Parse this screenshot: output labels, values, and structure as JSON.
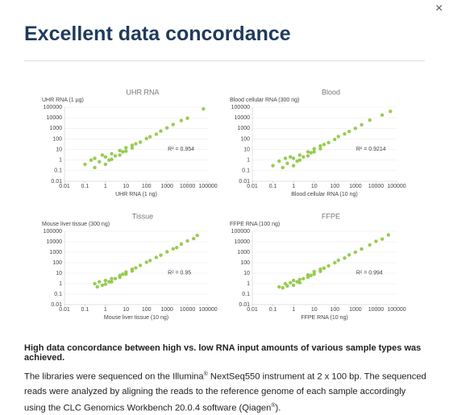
{
  "header": {
    "title": "Excellent data concordance",
    "close": "×"
  },
  "chart_data": [
    {
      "type": "scatter",
      "title": "UHR RNA",
      "xlabel": "UHR RNA (1 ng)",
      "ylabel": "UHR RNA (1 µg)",
      "annotation": "R² = 0.954",
      "color": "#8dc63f",
      "log": true,
      "grid": true,
      "x": [
        0.1,
        0.2,
        0.3,
        0.3,
        0.5,
        0.7,
        1,
        1,
        1.5,
        2,
        2,
        3,
        5,
        5,
        7,
        10,
        10,
        20,
        20,
        30,
        50,
        100,
        150,
        300,
        500,
        1000,
        2000,
        5000,
        10000,
        60000
      ],
      "y": [
        0.4,
        1,
        0.2,
        1.5,
        0.7,
        3,
        0.4,
        2,
        1,
        4,
        1.2,
        2.5,
        8,
        3,
        6,
        15,
        7,
        25,
        14,
        35,
        50,
        110,
        160,
        280,
        550,
        1100,
        2300,
        5500,
        9000,
        70000
      ],
      "xlim": [
        0.01,
        100000
      ],
      "ylim": [
        0.01,
        100000
      ],
      "xticks": [
        0.01,
        0.1,
        1,
        10,
        100,
        1000,
        10000,
        100000
      ],
      "yticks": [
        0.01,
        0.1,
        1,
        10,
        100,
        1000,
        10000,
        100000
      ]
    },
    {
      "type": "scatter",
      "title": "Blood",
      "xlabel": "Blood cellular RNA (10 ng)",
      "ylabel": "Blood cellular RNA (300 ng)",
      "annotation": "R² = 0.9214",
      "color": "#8dc63f",
      "log": true,
      "grid": true,
      "x": [
        0.1,
        0.2,
        0.3,
        0.4,
        0.5,
        0.7,
        1,
        1,
        1.5,
        2,
        2,
        3,
        5,
        5,
        7,
        10,
        10,
        20,
        20,
        30,
        50,
        100,
        150,
        300,
        500,
        1000,
        2000,
        5000,
        20000,
        50000
      ],
      "y": [
        0.3,
        0.8,
        0.2,
        1.5,
        0.5,
        2,
        0.3,
        1.5,
        0.8,
        3,
        1,
        2,
        6,
        2.5,
        5,
        12,
        6,
        22,
        12,
        30,
        45,
        90,
        170,
        300,
        500,
        1000,
        2200,
        6000,
        18000,
        40000
      ],
      "xlim": [
        0.01,
        100000
      ],
      "ylim": [
        0.01,
        100000
      ],
      "xticks": [
        0.01,
        0.1,
        1,
        10,
        100,
        1000,
        10000,
        100000
      ],
      "yticks": [
        0.01,
        0.1,
        1,
        10,
        100,
        1000,
        10000,
        100000
      ]
    },
    {
      "type": "scatter",
      "title": "Tissue",
      "xlabel": "Mouse liver tissue (10 ng)",
      "ylabel": "Mouse liver tissue (300 ng)",
      "annotation": "R² = 0.95",
      "color": "#8dc63f",
      "log": true,
      "grid": true,
      "x": [
        0.3,
        0.4,
        0.5,
        0.7,
        1,
        1,
        1.5,
        2,
        2,
        3,
        5,
        5,
        7,
        10,
        10,
        20,
        20,
        30,
        50,
        100,
        150,
        300,
        500,
        1000,
        2000,
        3000,
        5000,
        10000,
        20000,
        30000
      ],
      "y": [
        1,
        0.5,
        1.5,
        0.7,
        2,
        0.9,
        1.5,
        3,
        1.5,
        3,
        6,
        4,
        8,
        13,
        8,
        24,
        16,
        32,
        55,
        110,
        160,
        320,
        520,
        1100,
        2100,
        2800,
        6000,
        12000,
        20000,
        40000
      ],
      "xlim": [
        0.01,
        100000
      ],
      "ylim": [
        0.01,
        100000
      ],
      "xticks": [
        0.01,
        0.1,
        1,
        10,
        100,
        1000,
        10000,
        100000
      ],
      "yticks": [
        0.01,
        0.1,
        1,
        10,
        100,
        1000,
        10000,
        100000
      ]
    },
    {
      "type": "scatter",
      "title": "FFPE",
      "xlabel": "FFPE RNA (10 ng)",
      "ylabel": "FFPE RNA (100 ng)",
      "annotation": "R² = 0.994",
      "color": "#8dc63f",
      "log": true,
      "grid": true,
      "x": [
        0.2,
        0.3,
        0.4,
        0.5,
        0.7,
        1,
        1,
        1.5,
        2,
        2,
        3,
        5,
        5,
        7,
        10,
        10,
        20,
        20,
        30,
        50,
        100,
        150,
        300,
        500,
        1000,
        2000,
        5000,
        10000,
        20000,
        40000
      ],
      "y": [
        0.5,
        0.4,
        1,
        0.6,
        1.2,
        0.7,
        2,
        1.5,
        2.5,
        1.2,
        3,
        7,
        4,
        6,
        14,
        8,
        24,
        15,
        30,
        50,
        100,
        170,
        280,
        550,
        1000,
        2000,
        5000,
        11000,
        18000,
        45000
      ],
      "xlim": [
        0.01,
        100000
      ],
      "ylim": [
        0.01,
        100000
      ],
      "xticks": [
        0.01,
        0.1,
        1,
        10,
        100,
        1000,
        10000,
        100000
      ],
      "yticks": [
        0.01,
        0.1,
        1,
        10,
        100,
        1000,
        10000,
        100000
      ]
    }
  ],
  "caption": {
    "heading": "High data concordance between high vs. low RNA input amounts of various sample types was achieved.",
    "body": [
      "The libraries were sequenced on the Illumina",
      "®",
      " NextSeq550 instrument at 2 x 100 bp. The sequenced reads were analyzed by aligning the reads to the reference genome of each sample accordingly using the CLC Genomics Workbench 20.0.4 software (Qiagen",
      "®",
      ")."
    ]
  }
}
